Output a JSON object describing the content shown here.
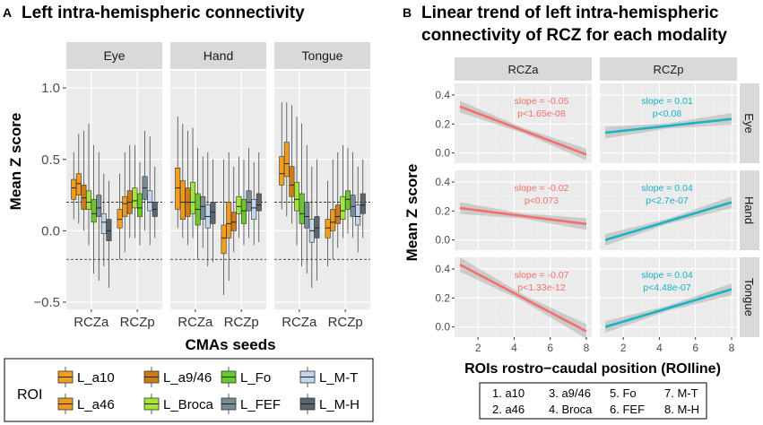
{
  "chart_data": [
    {
      "panel_letter": "A",
      "type": "boxplot",
      "title": "Left intra-hemispheric connectivity",
      "xlabel": "CMAs seeds",
      "ylabel": "Mean Z score",
      "ylim": [
        -0.55,
        1.12
      ],
      "yticks": [
        "1.0",
        "0.5",
        "0.0",
        "−0.5"
      ],
      "ytick_values": [
        1.0,
        0.5,
        0.0,
        -0.5
      ],
      "reference_lines": [
        0.2,
        -0.2
      ],
      "facets": [
        "Eye",
        "Hand",
        "Tongue"
      ],
      "categories": [
        "RCZa",
        "RCZp"
      ],
      "legend": {
        "title": "ROI",
        "items": [
          "L_a10",
          "L_a9/46",
          "L_Fo",
          "L_M-T",
          "L_a46",
          "L_Broca",
          "L_FEF",
          "L_M-H"
        ]
      },
      "roi_order": [
        "L_a10",
        "L_a46",
        "L_a9/46",
        "L_Broca",
        "L_Fo",
        "L_FEF",
        "L_M-T",
        "L_M-H"
      ],
      "roi_colors": [
        "#f0a01c",
        "#ee9a22",
        "#cd7c16",
        "#a4e43c",
        "#6ac92a",
        "#788c96",
        "#c4d6ec",
        "#5b6570"
      ],
      "series": [
        {
          "facet": "Eye",
          "seed": "RCZa",
          "boxes": [
            [
              0.08,
              0.22,
              0.3,
              0.36,
              0.55
            ],
            [
              0.05,
              0.25,
              0.33,
              0.4,
              0.68
            ],
            [
              0.0,
              0.15,
              0.23,
              0.32,
              0.7
            ],
            [
              -0.1,
              0.15,
              0.2,
              0.28,
              0.75
            ],
            [
              -0.3,
              0.06,
              0.12,
              0.22,
              0.6
            ],
            [
              -0.35,
              0.1,
              0.16,
              0.25,
              0.55
            ],
            [
              -0.25,
              -0.02,
              0.06,
              0.12,
              0.4
            ],
            [
              -0.4,
              -0.07,
              0.0,
              0.08,
              0.35
            ]
          ]
        },
        {
          "facet": "Eye",
          "seed": "RCZp",
          "boxes": [
            [
              -0.2,
              0.02,
              0.08,
              0.15,
              0.4
            ],
            [
              -0.15,
              0.1,
              0.19,
              0.24,
              0.55
            ],
            [
              -0.05,
              0.12,
              0.2,
              0.28,
              0.6
            ],
            [
              -0.05,
              0.16,
              0.21,
              0.3,
              0.6
            ],
            [
              -0.1,
              0.1,
              0.16,
              0.26,
              0.48
            ],
            [
              0.0,
              0.22,
              0.3,
              0.38,
              0.7
            ],
            [
              -0.1,
              0.14,
              0.2,
              0.28,
              0.66
            ],
            [
              -0.05,
              0.1,
              0.15,
              0.2,
              0.45
            ]
          ]
        },
        {
          "facet": "Hand",
          "seed": "RCZa",
          "boxes": [
            [
              0.02,
              0.15,
              0.3,
              0.44,
              0.8
            ],
            [
              -0.05,
              0.08,
              0.2,
              0.35,
              0.75
            ],
            [
              -0.1,
              0.1,
              0.2,
              0.3,
              0.7
            ],
            [
              -0.05,
              0.12,
              0.2,
              0.34,
              0.72
            ],
            [
              -0.2,
              0.04,
              0.15,
              0.26,
              0.58
            ],
            [
              -0.12,
              0.08,
              0.17,
              0.24,
              0.52
            ],
            [
              -0.25,
              0.02,
              0.1,
              0.18,
              0.55
            ],
            [
              -0.22,
              0.05,
              0.13,
              0.2,
              0.5
            ]
          ]
        },
        {
          "facet": "Hand",
          "seed": "RCZp",
          "boxes": [
            [
              -0.45,
              -0.16,
              -0.05,
              0.04,
              0.5
            ],
            [
              -0.35,
              -0.05,
              0.05,
              0.2,
              0.55
            ],
            [
              -0.15,
              0.0,
              0.06,
              0.13,
              0.45
            ],
            [
              -0.05,
              0.12,
              0.17,
              0.24,
              0.52
            ],
            [
              -0.1,
              0.05,
              0.14,
              0.22,
              0.5
            ],
            [
              -0.05,
              0.14,
              0.2,
              0.28,
              0.58
            ],
            [
              -0.1,
              0.08,
              0.16,
              0.22,
              0.48
            ],
            [
              -0.08,
              0.14,
              0.18,
              0.26,
              0.55
            ]
          ]
        },
        {
          "facet": "Tongue",
          "seed": "RCZa",
          "boxes": [
            [
              0.15,
              0.32,
              0.4,
              0.52,
              0.9
            ],
            [
              0.1,
              0.38,
              0.47,
              0.62,
              0.9
            ],
            [
              0.05,
              0.24,
              0.32,
              0.45,
              0.88
            ],
            [
              -0.1,
              0.14,
              0.22,
              0.34,
              0.8
            ],
            [
              -0.25,
              0.05,
              0.12,
              0.26,
              0.75
            ],
            [
              -0.3,
              0.02,
              0.1,
              0.2,
              0.6
            ],
            [
              -0.4,
              -0.08,
              0.0,
              0.08,
              0.45
            ],
            [
              -0.35,
              -0.05,
              0.02,
              0.1,
              0.5
            ]
          ]
        },
        {
          "facet": "Tongue",
          "seed": "RCZp",
          "boxes": [
            [
              -0.25,
              -0.05,
              0.02,
              0.08,
              0.35
            ],
            [
              -0.2,
              0.0,
              0.06,
              0.15,
              0.5
            ],
            [
              -0.12,
              0.05,
              0.1,
              0.18,
              0.55
            ],
            [
              -0.05,
              0.08,
              0.14,
              0.24,
              0.6
            ],
            [
              -0.02,
              0.15,
              0.22,
              0.28,
              0.58
            ],
            [
              -0.05,
              0.1,
              0.17,
              0.25,
              0.55
            ],
            [
              -0.15,
              0.04,
              0.1,
              0.18,
              0.45
            ],
            [
              -0.05,
              0.12,
              0.18,
              0.26,
              0.5
            ]
          ]
        }
      ]
    },
    {
      "panel_letter": "B",
      "type": "line",
      "title": "Linear trend of left intra-hemispheric connectivity of RCZ for each modality",
      "title_lines": [
        "Linear trend of left intra-hemispheric",
        "connectivity of RCZ for each modality"
      ],
      "xlabel": "ROIs rostro−caudal position (ROIline)",
      "ylabel": "Mean Z score",
      "xlim": [
        0.7,
        8.3
      ],
      "ylim": [
        -0.07,
        0.48
      ],
      "xticks": [
        "2",
        "4",
        "6",
        "8"
      ],
      "xtick_values": [
        2,
        4,
        6,
        8
      ],
      "yticks": [
        "0.4",
        "0.2",
        "0.0"
      ],
      "ytick_values": [
        0.4,
        0.2,
        0.0
      ],
      "col_facets": [
        "RCZa",
        "RCZp"
      ],
      "row_facets": [
        "Eye",
        "Hand",
        "Tongue"
      ],
      "series": [
        {
          "row": "Eye",
          "col": "RCZa",
          "color": "#f2706b",
          "x": [
            1,
            8
          ],
          "y": [
            0.32,
            -0.01
          ],
          "ci": 0.04,
          "label_lines": [
            "slope = -0.05",
            "p<1.65e-08"
          ]
        },
        {
          "row": "Eye",
          "col": "RCZp",
          "color": "#17b4c3",
          "x": [
            1,
            8
          ],
          "y": [
            0.14,
            0.235
          ],
          "ci": 0.04,
          "label_lines": [
            "slope = 0.01",
            "p<0.08"
          ]
        },
        {
          "row": "Hand",
          "col": "RCZa",
          "color": "#f2706b",
          "x": [
            1,
            8
          ],
          "y": [
            0.22,
            0.11
          ],
          "ci": 0.04,
          "label_lines": [
            "slope = -0.02",
            "p<0.073"
          ]
        },
        {
          "row": "Hand",
          "col": "RCZp",
          "color": "#17b4c3",
          "x": [
            1,
            8
          ],
          "y": [
            0.0,
            0.26
          ],
          "ci": 0.04,
          "label_lines": [
            "slope = 0.04",
            "p<2.7e-07"
          ]
        },
        {
          "row": "Tongue",
          "col": "RCZa",
          "color": "#f2706b",
          "x": [
            1,
            8
          ],
          "y": [
            0.43,
            -0.03
          ],
          "ci": 0.05,
          "label_lines": [
            "slope = -0.07",
            "p<1.33e-12"
          ]
        },
        {
          "row": "Tongue",
          "col": "RCZp",
          "color": "#17b4c3",
          "x": [
            1,
            8
          ],
          "y": [
            0.0,
            0.26
          ],
          "ci": 0.04,
          "label_lines": [
            "slope = 0.04",
            "p<4.48e-07"
          ]
        }
      ],
      "roi_key": [
        "1. a10",
        "3. a9/46",
        "5. Fo",
        "7. M-T",
        "2. a46",
        "4. Broca",
        "6. FEF",
        "8. M-H"
      ]
    }
  ]
}
